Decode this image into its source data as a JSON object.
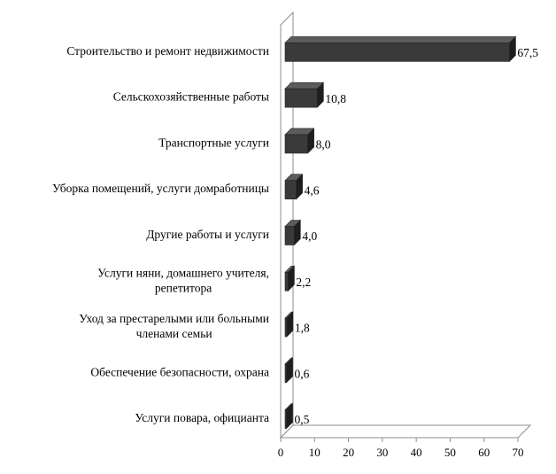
{
  "chart_data": {
    "type": "bar",
    "orientation": "horizontal",
    "title": "",
    "xlabel": "",
    "ylabel": "",
    "categories": [
      [
        "Строительство и ремонт недвижимости"
      ],
      [
        "Сельскохозяйственные работы"
      ],
      [
        "Транспортные услуги"
      ],
      [
        "Уборка помещений, услуги домработницы"
      ],
      [
        "Другие работы и услуги"
      ],
      [
        "Услуги няни, домашнего учителя,",
        "репетитора"
      ],
      [
        "Уход за  престарелыми или больными",
        "членами семьи"
      ],
      [
        "Обеспечение безопасности, охрана"
      ],
      [
        "Услуги повара, официанта"
      ]
    ],
    "values": [
      67.5,
      10.8,
      8.0,
      4.6,
      4.0,
      2.2,
      1.8,
      0.6,
      0.5
    ],
    "value_labels": [
      "67,5",
      "10,8",
      "8,0",
      "4,6",
      "4,0",
      "2,2",
      "1,8",
      "0,6",
      "0,5"
    ],
    "xlim": [
      0,
      70
    ],
    "xticks": [
      0,
      10,
      20,
      30,
      40,
      50,
      60,
      70
    ],
    "grid": false,
    "bar_color": "#3a3a3a",
    "bar_top_color": "#5c5c5c",
    "bar_side_color": "#1e1e1e"
  }
}
